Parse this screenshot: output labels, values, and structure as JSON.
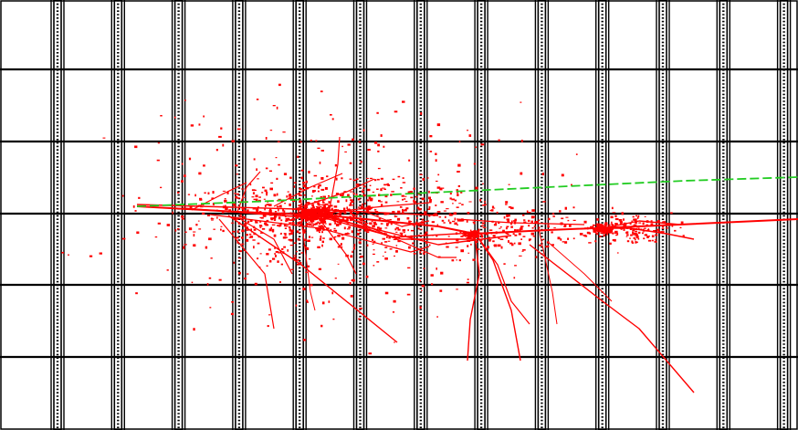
{
  "image": {
    "kind": "particle-detector event display",
    "background_color": "#ffffff",
    "structure_color": "#000000",
    "track_color": "#ff0000",
    "muon_track_color": "#22cc22"
  }
}
